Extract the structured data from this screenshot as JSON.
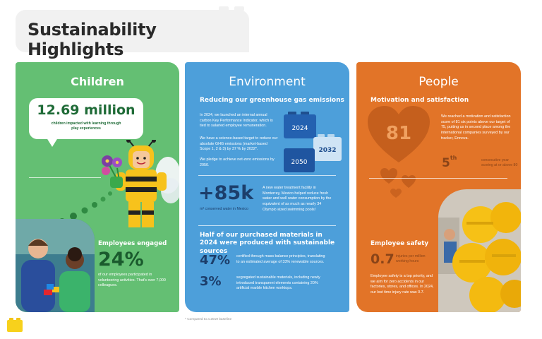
{
  "title": "Sustainability Highlights",
  "footnote": "* Compared to a 2019 baseline",
  "colors": {
    "children": "#64bf73",
    "environment": "#4d9fda",
    "people": "#e27428"
  },
  "children": {
    "title": "Children",
    "impact_value": "12.69 million",
    "impact_caption": "children impacted with learning through play experiences",
    "engaged_label": "Employees engaged",
    "engaged_value": "24%",
    "engaged_caption": "of our employees participated in volunteering activities. That's over 7,000 colleagues."
  },
  "environment": {
    "title": "Environment",
    "ghg_heading": "Reducing our greenhouse gas emissions",
    "ghg_p1": "In 2024, we launched an internal annual carbon Key Performance Indicator, which is tied to salaried employee remuneration.",
    "ghg_p2": "We have a science-based target to reduce our absolute GHG emissions (market-based Scope 1, 2 & 3) by 37 % by 2032*.",
    "ghg_p3": "We pledge to achieve net-zero emissions by 2050.",
    "brick_years": [
      "2024",
      "2032",
      "2050"
    ],
    "water_value": "+85k",
    "water_caption": "m³ conserved water in Mexico",
    "water_text": "A new water treatment facility in Monterrey, Mexico helped reduce fresh water and well water consumption by the equivalent of as much as nearly 34 Olympic-sized swimming pools!",
    "materials_heading": "Half of our purchased materials in 2024 were produced with sustainable sources",
    "materials": [
      {
        "value": "47%",
        "text": "certified through mass balance principles, translating to an estimated average of 33% renewable sources."
      },
      {
        "value": "3%",
        "text": "segregated sustainable materials, including newly introduced transparent elements containing 20% artificial marble kitchen worktops."
      }
    ]
  },
  "people": {
    "title": "People",
    "motivation_heading": "Motivation and satisfaction",
    "score": "81",
    "motivation_text": "We reached a motivation and satisfaction score of 81 six points above our target of 75, putting us in second place among the international companies surveyed by our tracker, Ennova.",
    "rank_value": "5",
    "rank_suffix": "th",
    "rank_caption": "consecutive year scoring at or above 80",
    "safety_label": "Employee safety",
    "safety_value": "0.7",
    "safety_caption": "injuries per million working hours",
    "safety_text": "Employee safety is a top priority, and we aim for zero accidents in our factories, stores, and offices. In 2024, our lost time injury rate was 0.7."
  }
}
